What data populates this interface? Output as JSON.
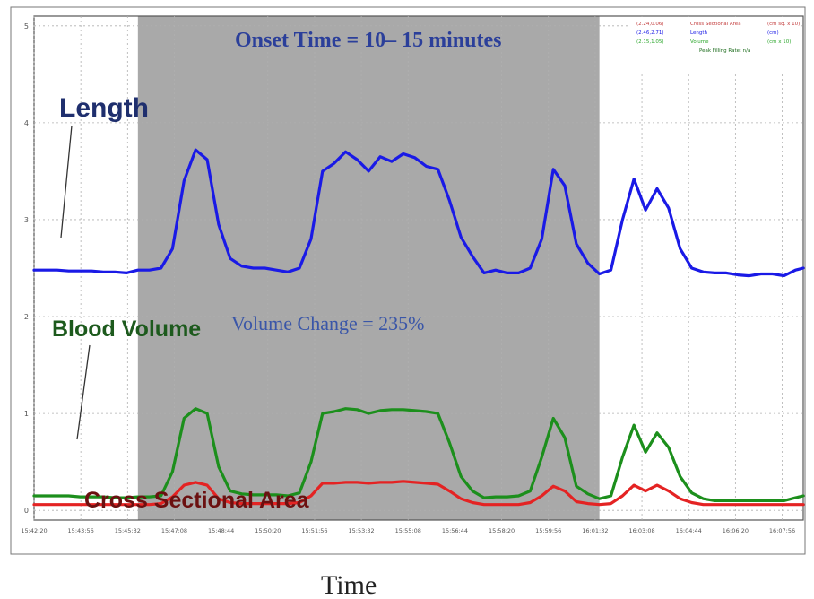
{
  "chart_data": {
    "type": "line",
    "x": [
      0,
      1.5,
      3,
      4.5,
      6,
      7.5,
      9,
      10.5,
      12,
      13.5,
      15,
      16.5,
      18,
      19.5,
      21,
      22.5,
      24,
      25.5,
      27,
      28.5,
      30,
      31.5,
      33,
      34.5,
      36,
      37.5,
      39,
      40.5,
      42,
      43.5,
      45,
      46.5,
      48,
      49.5,
      51,
      52.5,
      54,
      55.5,
      57,
      58.5,
      60,
      61.5,
      63,
      64.5,
      66,
      67.5,
      69,
      70.5,
      72,
      73.5,
      75,
      76.5,
      78,
      79.5,
      81,
      82.5,
      84,
      85.5,
      87,
      88.5,
      90,
      91.5,
      93,
      94.5,
      96,
      97.5,
      99,
      100
    ],
    "x_tick_labels": [
      "15:42:20",
      "15:43:56",
      "15:45:32",
      "15:47:08",
      "15:48:44",
      "15:50:20",
      "15:51:56",
      "15:53:32",
      "15:55:08",
      "15:56:44",
      "15:58:20",
      "15:59:56",
      "16:01:32",
      "16:03:08",
      "16:04:44",
      "16:06:20",
      "16:07:56"
    ],
    "y_ticks": [
      0,
      1,
      2,
      3,
      4,
      5
    ],
    "ylim": [
      -0.1,
      5.1
    ],
    "grid": true,
    "shaded_region": [
      13.5,
      73.5
    ],
    "title": "Onset Time = 10– 15 minutes",
    "annotation": "Volume Change = 235%",
    "xlabel": "Time",
    "series": [
      {
        "name": "Length",
        "color": "#1a1ae6",
        "values": [
          2.48,
          2.48,
          2.48,
          2.47,
          2.47,
          2.47,
          2.46,
          2.46,
          2.45,
          2.48,
          2.48,
          2.5,
          2.7,
          3.4,
          3.72,
          3.62,
          2.95,
          2.6,
          2.52,
          2.5,
          2.5,
          2.48,
          2.46,
          2.5,
          2.8,
          3.5,
          3.58,
          3.7,
          3.62,
          3.5,
          3.65,
          3.6,
          3.68,
          3.64,
          3.55,
          3.52,
          3.2,
          2.82,
          2.62,
          2.45,
          2.48,
          2.45,
          2.45,
          2.5,
          2.8,
          3.52,
          3.35,
          2.75,
          2.55,
          2.44,
          2.48,
          3.0,
          3.42,
          3.1,
          3.32,
          3.12,
          2.7,
          2.5,
          2.46,
          2.45,
          2.45,
          2.43,
          2.42,
          2.44,
          2.44,
          2.42,
          2.48,
          2.5
        ]
      },
      {
        "name": "Blood Volume",
        "color": "#1c8f1c",
        "values": [
          0.15,
          0.15,
          0.15,
          0.15,
          0.14,
          0.14,
          0.14,
          0.13,
          0.13,
          0.14,
          0.14,
          0.15,
          0.4,
          0.95,
          1.05,
          1.0,
          0.45,
          0.2,
          0.17,
          0.16,
          0.16,
          0.16,
          0.15,
          0.18,
          0.5,
          1.0,
          1.02,
          1.05,
          1.04,
          1.0,
          1.03,
          1.04,
          1.04,
          1.03,
          1.02,
          1.0,
          0.7,
          0.35,
          0.2,
          0.13,
          0.14,
          0.14,
          0.15,
          0.2,
          0.55,
          0.95,
          0.75,
          0.25,
          0.17,
          0.12,
          0.15,
          0.55,
          0.88,
          0.6,
          0.8,
          0.65,
          0.35,
          0.18,
          0.12,
          0.1,
          0.1,
          0.1,
          0.1,
          0.1,
          0.1,
          0.1,
          0.13,
          0.15
        ]
      },
      {
        "name": "Cross Sectional Area",
        "color": "#e42323",
        "values": [
          0.06,
          0.06,
          0.06,
          0.06,
          0.06,
          0.06,
          0.06,
          0.06,
          0.06,
          0.06,
          0.06,
          0.07,
          0.14,
          0.26,
          0.29,
          0.26,
          0.12,
          0.08,
          0.07,
          0.07,
          0.07,
          0.07,
          0.07,
          0.08,
          0.15,
          0.28,
          0.28,
          0.29,
          0.29,
          0.28,
          0.29,
          0.29,
          0.3,
          0.29,
          0.28,
          0.27,
          0.2,
          0.12,
          0.08,
          0.06,
          0.06,
          0.06,
          0.06,
          0.08,
          0.15,
          0.25,
          0.2,
          0.09,
          0.07,
          0.06,
          0.07,
          0.15,
          0.26,
          0.2,
          0.26,
          0.2,
          0.12,
          0.08,
          0.06,
          0.06,
          0.06,
          0.06,
          0.06,
          0.06,
          0.06,
          0.06,
          0.06,
          0.06
        ]
      }
    ],
    "legend": {
      "placement": "top-right",
      "rows": [
        {
          "value": "(2.24,0.06)",
          "name": "Cross Sectional Area",
          "unit": "(cm sq. x 10)",
          "color": "#c23a3a"
        },
        {
          "value": "(2.46,2.71)",
          "name": "Length",
          "unit": "(cm)",
          "color": "#1a1ae6"
        },
        {
          "value": "(2.15,1.05)",
          "name": "Volume",
          "unit": "(cm x 10)",
          "color": "#2aa62a"
        },
        {
          "value": "",
          "name": "Peak Filling  Rate: n/a",
          "unit": "",
          "color": "#1a6a1a"
        }
      ]
    },
    "series_labels": {
      "length": "Length",
      "blood_volume": "Blood Volume",
      "cross_sectional_area": "Cross Sectional Area"
    }
  }
}
